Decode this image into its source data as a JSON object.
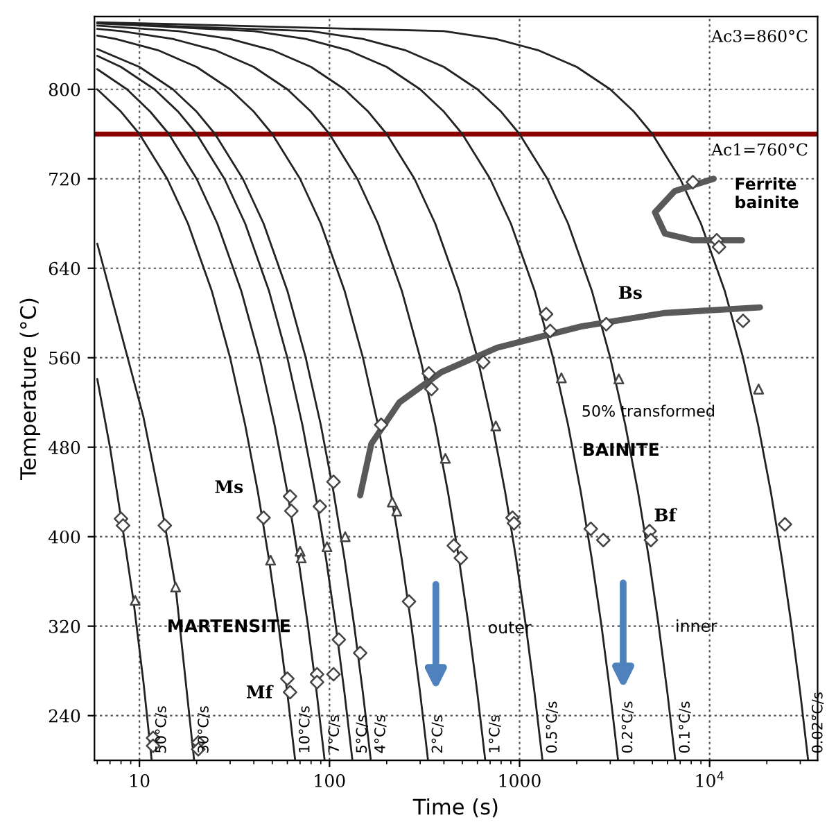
{
  "chart_data": {
    "type": "line",
    "xlabel": "Time (s)",
    "ylabel": "Temperature (°C)",
    "log": "x",
    "xlim": [
      5.8,
      37000
    ],
    "xticks": [
      10,
      100,
      1000,
      {
        "value": 10000,
        "label": "10$^{4}$"
      }
    ],
    "ylim": [
      200,
      865
    ],
    "yticks": [
      240,
      320,
      400,
      480,
      560,
      640,
      720,
      800
    ],
    "grid": true,
    "legend": false,
    "line_style": "solid",
    "series": [
      {
        "name": "50°C/s",
        "color": "#222222",
        "x": [
          6,
          7,
          8.2,
          9.3,
          10.5,
          11.6
        ],
        "values": [
          541,
          480,
          405,
          343,
          270,
          200
        ]
      },
      {
        "name": "30°C/s",
        "color": "#222222",
        "x": [
          6,
          10.5,
          13.3,
          15.5,
          19.4
        ],
        "values": [
          662,
          507,
          420,
          355,
          200
        ]
      },
      {
        "name": "10°C/s",
        "color": "#222222",
        "x": [
          6,
          8,
          10,
          14,
          18,
          24,
          30,
          36,
          42,
          48,
          54,
          60,
          66
        ],
        "values": [
          800,
          780,
          760,
          720,
          680,
          620,
          560,
          500,
          440,
          380,
          320,
          260,
          200
        ]
      },
      {
        "name": "7°C/s",
        "color": "#222222",
        "x": [
          6,
          8.6,
          11.4,
          14.3,
          20,
          25.7,
          34.3,
          42.9,
          51.4,
          60,
          68.6,
          77.1,
          85.7,
          94.3
        ],
        "values": [
          818,
          800,
          780,
          760,
          720,
          680,
          620,
          560,
          500,
          440,
          380,
          320,
          260,
          200
        ]
      },
      {
        "name": "5°C/s",
        "color": "#222222",
        "x": [
          6,
          8,
          12,
          16,
          20,
          28,
          36,
          48,
          60,
          72,
          84,
          96,
          108,
          120,
          132
        ],
        "values": [
          830,
          820,
          800,
          780,
          760,
          720,
          680,
          620,
          560,
          500,
          440,
          380,
          320,
          260,
          200
        ]
      },
      {
        "name": "4°C/s",
        "color": "#222222",
        "x": [
          6,
          10,
          15,
          20,
          25,
          35,
          45,
          60,
          75,
          90,
          105,
          120,
          135,
          150,
          165
        ],
        "values": [
          836,
          820,
          800,
          780,
          760,
          720,
          680,
          620,
          560,
          500,
          440,
          380,
          320,
          260,
          200
        ]
      },
      {
        "name": "2°C/s",
        "color": "#222222",
        "x": [
          6,
          7.5,
          12.5,
          20,
          30,
          40,
          50,
          70,
          90,
          120,
          150,
          180,
          210,
          240,
          270,
          300,
          330
        ],
        "values": [
          848,
          845,
          835,
          820,
          800,
          780,
          760,
          720,
          680,
          620,
          560,
          500,
          440,
          380,
          320,
          260,
          200
        ]
      },
      {
        "name": "1°C/s",
        "color": "#222222",
        "x": [
          6,
          8,
          15,
          25,
          40,
          60,
          80,
          100,
          140,
          180,
          240,
          300,
          360,
          420,
          480,
          540,
          600,
          660
        ],
        "values": [
          854,
          852,
          845,
          835,
          820,
          800,
          780,
          760,
          720,
          680,
          620,
          560,
          500,
          440,
          380,
          320,
          260,
          200
        ]
      },
      {
        "name": "0.5°C/s",
        "color": "#222222",
        "x": [
          6,
          16,
          30,
          50,
          80,
          120,
          160,
          200,
          280,
          360,
          480,
          600,
          720,
          840,
          960,
          1080,
          1200,
          1320
        ],
        "values": [
          857,
          852,
          845,
          835,
          820,
          800,
          780,
          760,
          720,
          680,
          620,
          560,
          500,
          440,
          380,
          320,
          260,
          200
        ]
      },
      {
        "name": "0.2°C/s",
        "color": "#222222",
        "x": [
          6,
          40,
          75,
          125,
          200,
          300,
          400,
          500,
          700,
          900,
          1200,
          1500,
          1800,
          2100,
          2400,
          2700,
          3000,
          3300
        ],
        "values": [
          859,
          852,
          845,
          835,
          820,
          800,
          780,
          760,
          720,
          680,
          620,
          560,
          500,
          440,
          380,
          320,
          260,
          200
        ]
      },
      {
        "name": "0.1°C/s",
        "color": "#222222",
        "x": [
          6,
          80,
          150,
          250,
          400,
          600,
          800,
          1000,
          1400,
          1800,
          2400,
          3000,
          3600,
          4200,
          4800,
          5400,
          6000,
          6600
        ],
        "values": [
          859,
          852,
          845,
          835,
          820,
          800,
          780,
          760,
          720,
          680,
          620,
          560,
          500,
          440,
          380,
          320,
          260,
          200
        ]
      },
      {
        "name": "0.02°C/s",
        "color": "#222222",
        "x": [
          6,
          400,
          750,
          1250,
          2000,
          3000,
          4000,
          5000,
          7000,
          9000,
          12000,
          15000,
          18000,
          21000,
          24000,
          27000,
          30000,
          33000
        ],
        "values": [
          860,
          852,
          845,
          835,
          820,
          800,
          780,
          760,
          720,
          680,
          620,
          560,
          500,
          440,
          380,
          320,
          260,
          200
        ]
      },
      {
        "color": "#595959",
        "x": [
          145,
          166,
          233,
          387,
          762,
          2110,
          5820,
          18400
        ],
        "values": [
          437,
          483,
          520,
          547,
          569,
          588,
          600,
          605
        ]
      },
      {
        "color": "#595959",
        "x": [
          14800,
          8170,
          5820,
          5160,
          6550,
          10500
        ],
        "values": [
          665,
          665,
          671,
          690,
          709,
          720
        ]
      },
      {
        "type": "scatter",
        "marker": "diamond",
        "color": "#444444",
        "x": [
          8.0,
          8.2,
          13.6,
          45,
          62,
          63,
          89,
          105,
          187,
          451,
          491,
          262,
          112,
          145,
          60,
          62,
          86,
          86,
          105,
          11.8,
          11.8,
          20.4,
          20.4,
          8170,
          10900,
          11200,
          15000,
          2860,
          1450,
          1380,
          644,
          333,
          344,
          918,
          935,
          2370,
          2760,
          4830,
          4910,
          24900
        ],
        "values": [
          416,
          410,
          410,
          417,
          436,
          423,
          427,
          449,
          500,
          392,
          381,
          342,
          308,
          296,
          273,
          261,
          277,
          270,
          277,
          220,
          213,
          216,
          210,
          717,
          665,
          659,
          593,
          590,
          584,
          599,
          556,
          546,
          532,
          417,
          412,
          407,
          397,
          405,
          397,
          411
        ]
      },
      {
        "type": "scatter",
        "marker": "triangle",
        "color": "#444444",
        "x": [
          9.5,
          15.5,
          49,
          70,
          71,
          97,
          121,
          214,
          226,
          407,
          750,
          1660,
          3330,
          18100
        ],
        "values": [
          343,
          355,
          379,
          387,
          381,
          391,
          400,
          431,
          423,
          470,
          499,
          542,
          541,
          532
        ]
      }
    ],
    "ref_lines": [
      {
        "axis": "y",
        "value": 760,
        "label": "Ac1=760°C",
        "color": "#8b0000"
      }
    ],
    "annotations": [
      "Ac3=860°C",
      "Ferrite\nbainite",
      "Bs",
      "50% transformed",
      "BAINITE",
      "Bf",
      "Ms",
      "MARTENSITE",
      "Mf",
      "outer",
      "inner"
    ]
  }
}
